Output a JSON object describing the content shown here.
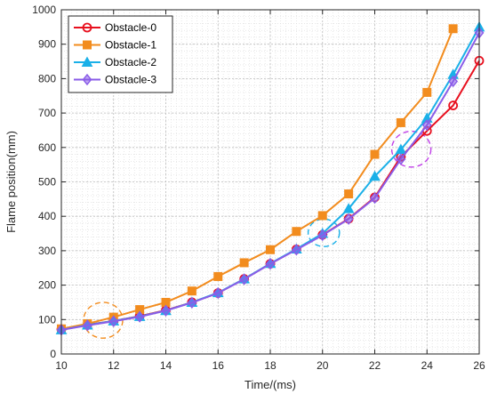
{
  "chart_data": {
    "type": "line",
    "xlabel": "Time/(ms)",
    "ylabel": "Flame position(mm)",
    "xlim": [
      10,
      26
    ],
    "ylim": [
      0,
      1000
    ],
    "xticks": [
      10,
      12,
      14,
      16,
      18,
      20,
      22,
      24,
      26
    ],
    "yticks": [
      0,
      100,
      200,
      300,
      400,
      500,
      600,
      700,
      800,
      900,
      1000
    ],
    "grid": true,
    "legend_position": "top-left",
    "series": [
      {
        "name": "Obstacle-0",
        "color": "#e8101e",
        "marker": "circle",
        "x": [
          10,
          11,
          12,
          13,
          14,
          15,
          16,
          17,
          18,
          19,
          20,
          21,
          22,
          23,
          24,
          25,
          26
        ],
        "values": [
          72,
          85,
          96,
          110,
          127,
          150,
          177,
          218,
          262,
          304,
          346,
          393,
          455,
          573,
          648,
          722,
          852
        ]
      },
      {
        "name": "Obstacle-1",
        "color": "#f28c1e",
        "marker": "square",
        "x": [
          10,
          11,
          12,
          13,
          14,
          15,
          16,
          17,
          18,
          19,
          20,
          21,
          22,
          23,
          24,
          25
        ],
        "values": [
          73,
          88,
          107,
          129,
          150,
          183,
          225,
          265,
          303,
          356,
          402,
          465,
          580,
          672,
          760,
          945
        ]
      },
      {
        "name": "Obstacle-2",
        "color": "#1ab0e8",
        "marker": "triangle",
        "x": [
          10,
          11,
          12,
          13,
          14,
          15,
          16,
          17,
          18,
          19,
          20,
          21,
          22,
          23,
          24,
          25,
          26
        ],
        "values": [
          70,
          84,
          96,
          109,
          126,
          150,
          178,
          218,
          263,
          305,
          350,
          422,
          516,
          594,
          685,
          812,
          950
        ]
      },
      {
        "name": "Obstacle-3",
        "color": "#8a5ce8",
        "marker": "diamond",
        "x": [
          10,
          11,
          12,
          13,
          14,
          15,
          16,
          17,
          18,
          19,
          20,
          21,
          22,
          23,
          24,
          25,
          26
        ],
        "values": [
          70,
          83,
          95,
          108,
          126,
          149,
          177,
          217,
          262,
          303,
          345,
          392,
          453,
          566,
          665,
          792,
          933
        ]
      }
    ],
    "annotations": [
      {
        "shape": "dashed-ellipse",
        "color": "#f28c1e",
        "cx": 11.6,
        "cy": 98,
        "rx": 0.75,
        "ry": 52
      },
      {
        "shape": "dashed-ellipse",
        "color": "#1ab0e8",
        "cx": 20.05,
        "cy": 352,
        "rx": 0.6,
        "ry": 40
      },
      {
        "shape": "dashed-ellipse",
        "color": "#c040e8",
        "cx": 23.4,
        "cy": 595,
        "rx": 0.75,
        "ry": 52
      }
    ]
  }
}
